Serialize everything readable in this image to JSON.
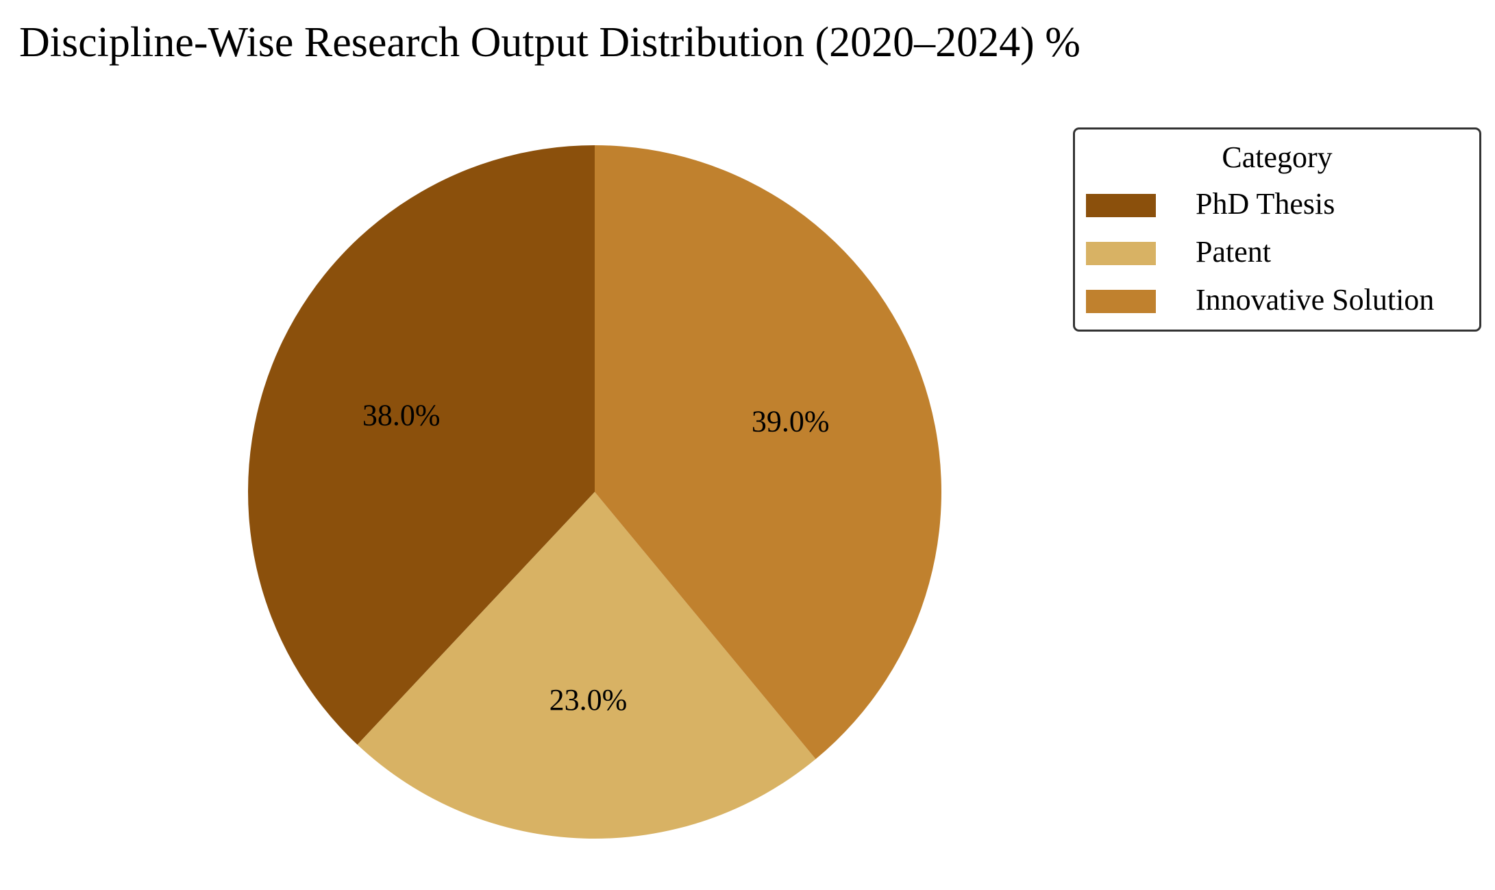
{
  "chart_data": {
    "type": "pie",
    "title": "Discipline-Wise Research Output Distribution (2020–2024) %",
    "categories": [
      "PhD Thesis",
      "Patent",
      "Innovative Solution"
    ],
    "values": [
      38.0,
      23.0,
      39.0
    ],
    "labels": [
      "38.0%",
      "23.0%",
      "39.0%"
    ],
    "colors": [
      "#8B500C",
      "#D8B264",
      "#C0812E"
    ],
    "start_angle": 90,
    "direction": "counterclockwise",
    "legend": {
      "title": "Category",
      "placement": "top-right"
    }
  }
}
